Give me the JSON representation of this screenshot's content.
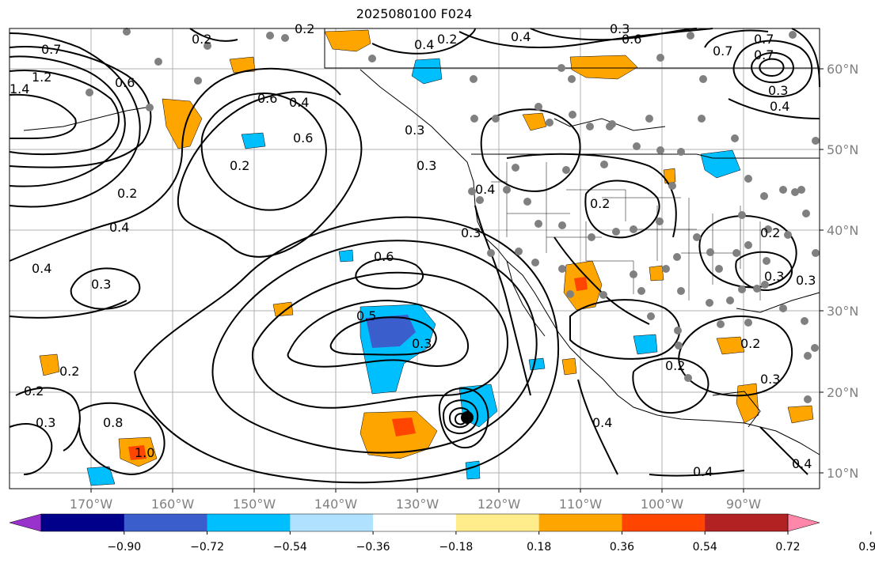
{
  "title": "2025080100 F024",
  "map": {
    "lat_labels": [
      "60°N",
      "50°N",
      "40°N",
      "30°N",
      "20°N",
      "10°N"
    ],
    "lon_labels": [
      "170°W",
      "160°W",
      "150°W",
      "140°W",
      "130°W",
      "120°W",
      "110°W",
      "100°W",
      "90°W"
    ],
    "station_marker_color": "#808080",
    "contour_color": "#000000"
  },
  "contour_labels": [
    "0.7",
    "1.4",
    "1.2",
    "0.6",
    "0.2",
    "0.2",
    "0.4",
    "0.2",
    "0.4",
    "0.3",
    "0.6",
    "0.7",
    "0.7",
    "0.7",
    "0.3",
    "0.4",
    "0.6",
    "0.4",
    "0.6",
    "0.2",
    "0.3",
    "0.3",
    "0.4",
    "0.3",
    "0.2",
    "0.4",
    "0.4",
    "0.3",
    "0.6",
    "0.5",
    "0.3",
    "0.2",
    "0.2",
    "0.2",
    "0.3",
    "0.2",
    "0.2",
    "0.2",
    "0.3",
    "0.8",
    "1.0",
    "0.4",
    "0.4",
    "0.3",
    "0.4",
    "0.3"
  ],
  "colorbar": {
    "ticks": [
      "−0.90",
      "−0.72",
      "−0.54",
      "−0.36",
      "−0.18",
      "0.18",
      "0.36",
      "0.54",
      "0.72",
      "0.90"
    ],
    "colors": [
      "#9932cc",
      "#00008b",
      "#3a5fcd",
      "#00bfff",
      "#b0e2ff",
      "#ffffff",
      "#ffec8b",
      "#ffa500",
      "#ff4500",
      "#b22222",
      "#ff88aa"
    ]
  }
}
